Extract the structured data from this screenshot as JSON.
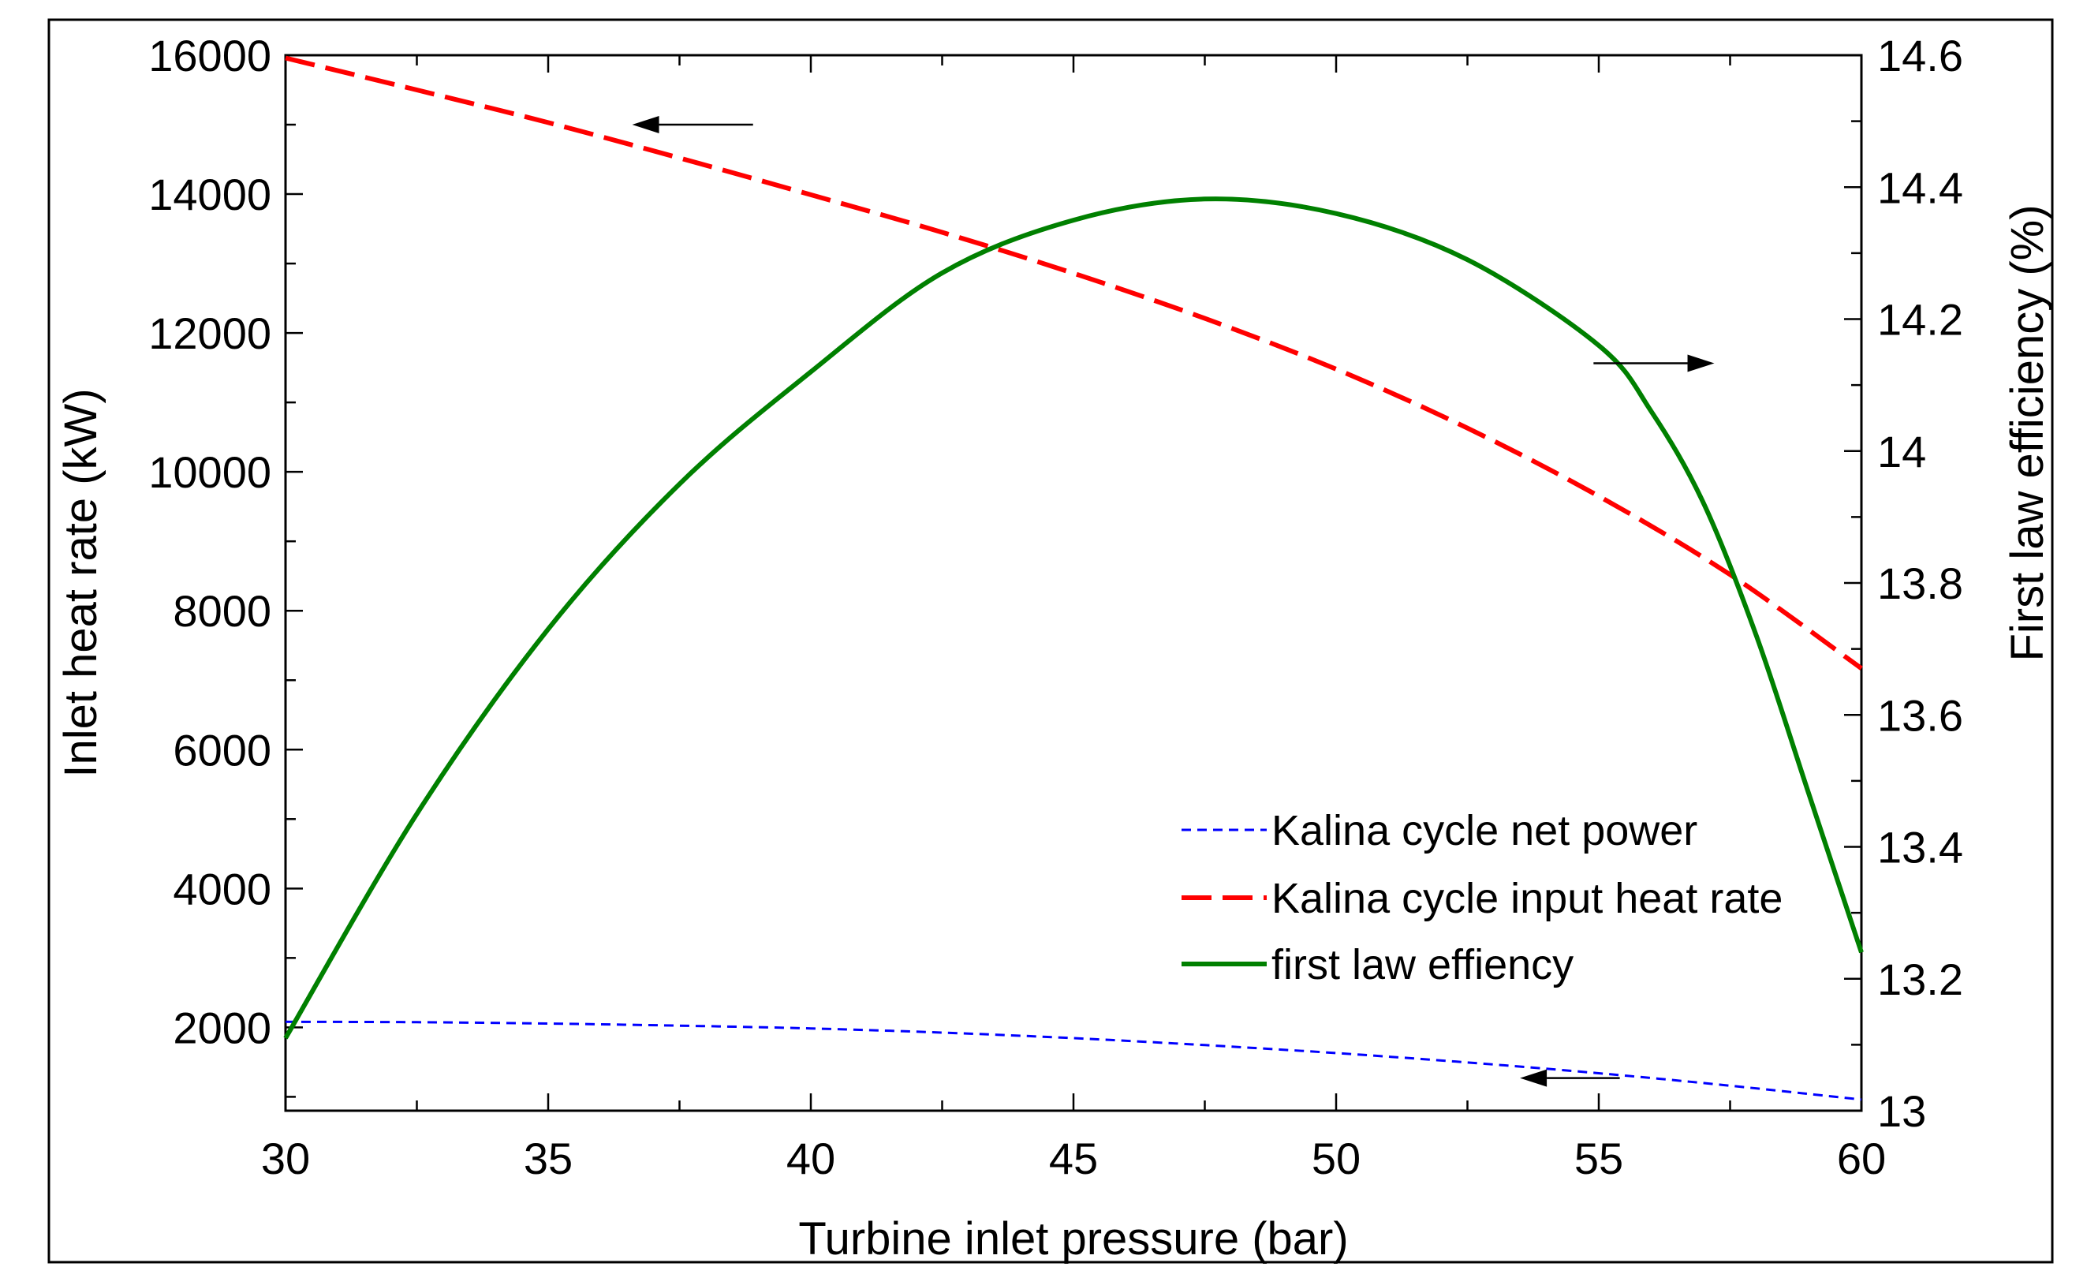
{
  "chart_data": {
    "type": "line",
    "xlabel": "Turbine inlet pressure (bar)",
    "ylabel_left": "Inlet heat rate  (kW)",
    "ylabel_right": "First law efficiency (%)",
    "xlim": [
      30,
      60
    ],
    "ylim_left": [
      800,
      16000
    ],
    "ylim_right": [
      13.0,
      14.6
    ],
    "x_ticks": [
      30,
      35,
      40,
      45,
      50,
      55,
      60
    ],
    "x_tick_labels": [
      "30",
      "35",
      "40",
      "45",
      "50",
      "55",
      "60"
    ],
    "y_left_ticks": [
      2000,
      4000,
      6000,
      8000,
      10000,
      12000,
      14000,
      16000
    ],
    "y_left_tick_labels": [
      "2000",
      "4000",
      "6000",
      "8000",
      "10000",
      "12000",
      "14000",
      "16000"
    ],
    "y_right_ticks": [
      13.0,
      13.2,
      13.4,
      13.6,
      13.8,
      14.0,
      14.2,
      14.4,
      14.6
    ],
    "y_right_tick_labels": [
      "13",
      "13.2",
      "13.4",
      "13.6",
      "13.8",
      "14",
      "14.2",
      "14.4",
      "14.6"
    ],
    "grid": false,
    "legend_position": "bottom-right",
    "series": [
      {
        "name": "Kalina cycle net power",
        "axis": "left",
        "color": "#0000ff",
        "style": "short-dash",
        "x": [
          30,
          32.5,
          35,
          37.5,
          40,
          42.5,
          45,
          47.5,
          50,
          52.5,
          55,
          57.5,
          60
        ],
        "values": [
          2080,
          2075,
          2055,
          2025,
          1985,
          1925,
          1845,
          1745,
          1630,
          1495,
          1340,
          1160,
          960
        ]
      },
      {
        "name": "Kalina cycle input heat rate",
        "axis": "left",
        "color": "#ff0000",
        "style": "long-dash",
        "x": [
          30,
          32.5,
          35,
          37.5,
          40,
          42.5,
          45,
          47.5,
          50,
          52.5,
          55,
          57.5,
          60
        ],
        "values": [
          15960,
          15500,
          15030,
          14520,
          13990,
          13450,
          12860,
          12210,
          11480,
          10630,
          9650,
          8520,
          7170
        ]
      },
      {
        "name": "first law effiency",
        "axis": "right",
        "color": "#008000",
        "style": "solid",
        "x": [
          30,
          32.5,
          35,
          37.5,
          40,
          42.5,
          45,
          47.5,
          50,
          52.5,
          55,
          56,
          57,
          58,
          59,
          60
        ],
        "values": [
          13.11,
          13.45,
          13.73,
          13.95,
          14.12,
          14.27,
          14.35,
          14.382,
          14.36,
          14.29,
          14.16,
          14.06,
          13.92,
          13.72,
          13.48,
          13.24
        ]
      }
    ],
    "annotations": [
      {
        "type": "arrow",
        "points_to": "left",
        "from": [
          38.9,
          15000
        ],
        "to": [
          36.6,
          15000
        ]
      },
      {
        "type": "arrow",
        "points_to": "right",
        "from": [
          54.9,
          14.133
        ],
        "to": [
          57.2,
          14.133
        ]
      },
      {
        "type": "arrow",
        "points_to": "left",
        "from": [
          55.4,
          1270
        ],
        "to": [
          53.5,
          1270
        ]
      }
    ]
  }
}
